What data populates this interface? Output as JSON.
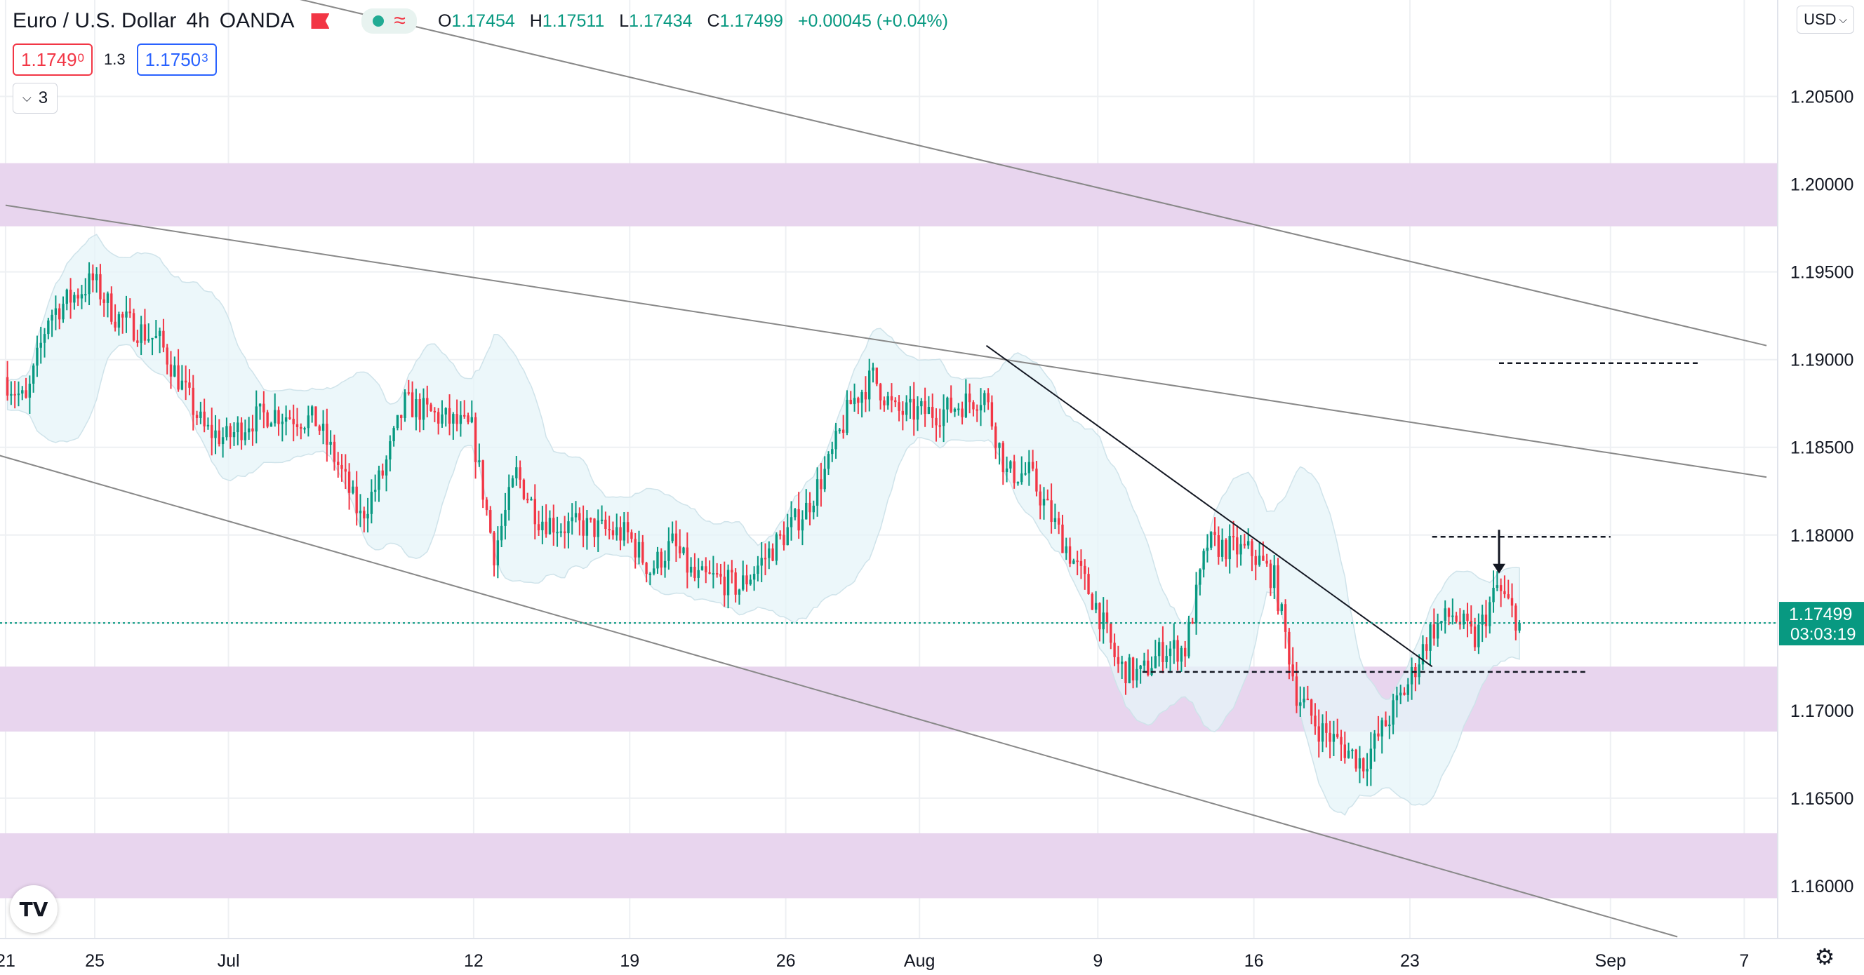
{
  "header": {
    "symbol": "Euro / U.S. Dollar",
    "interval": "4h",
    "broker": "OANDA",
    "ohlc": {
      "o_label": "O",
      "o": "1.17454",
      "h_label": "H",
      "h": "1.17511",
      "l_label": "L",
      "l": "1.17434",
      "c_label": "C",
      "c": "1.17499",
      "change": "+0.00045 (+0.04%)"
    }
  },
  "trade": {
    "bid_main": "1.1749",
    "bid_sup": "0",
    "spread": "1.3",
    "ask_main": "1.1750",
    "ask_sup": "3"
  },
  "legend_button": {
    "count": "3"
  },
  "currency_button": {
    "label": "USD"
  },
  "icons": {
    "flag": "flag-icon",
    "market_open": "market-status-dot-icon",
    "data_wave": "data-wave-icon",
    "chevron": "chevron-down-icon",
    "logo": "tradingview-logo-icon",
    "settings": "gear-icon"
  },
  "logo_text": "TV",
  "colors": {
    "up": "#089981",
    "down": "#f23645",
    "zone": "#e8d5ee",
    "band": "#e6f4f8",
    "last_price": "#089981",
    "trendline": "#888888"
  },
  "chart_data": {
    "type": "candlestick",
    "symbol": "EURUSD",
    "timeframe": "4h",
    "ylim": [
      1.157,
      1.2105
    ],
    "y_ticks": [
      1.16,
      1.165,
      1.17,
      1.175,
      1.18,
      1.185,
      1.19,
      1.195,
      1.2,
      1.205
    ],
    "y_tick_labels": [
      "1.16000",
      "1.16500",
      "1.17000",
      "1.17500",
      "1.18000",
      "1.18500",
      "1.19000",
      "1.19500",
      "1.20000",
      "1.20500"
    ],
    "x_range": [
      "2021-06-20T18:00",
      "2021-09-08T12:00"
    ],
    "x_ticks": [
      {
        "label": "21",
        "date": "2021-06-21"
      },
      {
        "label": "25",
        "date": "2021-06-25"
      },
      {
        "label": "Jul",
        "date": "2021-07-01"
      },
      {
        "label": "12",
        "date": "2021-07-12"
      },
      {
        "label": "19",
        "date": "2021-07-19"
      },
      {
        "label": "26",
        "date": "2021-07-26"
      },
      {
        "label": "Aug",
        "date": "2021-08-01"
      },
      {
        "label": "9",
        "date": "2021-08-09"
      },
      {
        "label": "16",
        "date": "2021-08-16"
      },
      {
        "label": "23",
        "date": "2021-08-23"
      },
      {
        "label": "Sep",
        "date": "2021-09-01"
      },
      {
        "label": "7",
        "date": "2021-09-07"
      }
    ],
    "last_price": {
      "value": 1.17499,
      "label": "1.17499",
      "countdown": "03:03:19"
    },
    "segments": [
      [
        "2021-06-21",
        1.189
      ],
      [
        "2021-06-22",
        1.1875
      ],
      [
        "2021-06-23",
        1.1925
      ],
      [
        "2021-06-24",
        1.1935
      ],
      [
        "2021-06-25",
        1.1945
      ],
      [
        "2021-06-26",
        1.1925
      ],
      [
        "2021-06-28",
        1.191
      ],
      [
        "2021-06-29",
        1.1885
      ],
      [
        "2021-06-30",
        1.186
      ],
      [
        "2021-07-01",
        1.1855
      ],
      [
        "2021-07-02",
        1.1865
      ],
      [
        "2021-07-03",
        1.187
      ],
      [
        "2021-07-05",
        1.1865
      ],
      [
        "2021-07-06",
        1.184
      ],
      [
        "2021-07-07",
        1.181
      ],
      [
        "2021-07-08",
        1.1835
      ],
      [
        "2021-07-09",
        1.1875
      ],
      [
        "2021-07-10",
        1.187
      ],
      [
        "2021-07-12",
        1.186
      ],
      [
        "2021-07-13",
        1.179
      ],
      [
        "2021-07-14",
        1.1835
      ],
      [
        "2021-07-15",
        1.181
      ],
      [
        "2021-07-16",
        1.1805
      ],
      [
        "2021-07-17",
        1.1805
      ],
      [
        "2021-07-19",
        1.18
      ],
      [
        "2021-07-20",
        1.178
      ],
      [
        "2021-07-21",
        1.1795
      ],
      [
        "2021-07-22",
        1.1775
      ],
      [
        "2021-07-23",
        1.1775
      ],
      [
        "2021-07-24",
        1.177
      ],
      [
        "2021-07-26",
        1.18
      ],
      [
        "2021-07-27",
        1.1815
      ],
      [
        "2021-07-28",
        1.184
      ],
      [
        "2021-07-29",
        1.1875
      ],
      [
        "2021-07-30",
        1.189
      ],
      [
        "2021-07-31",
        1.187
      ],
      [
        "2021-08-02",
        1.187
      ],
      [
        "2021-08-03",
        1.1875
      ],
      [
        "2021-08-04",
        1.188
      ],
      [
        "2021-08-05",
        1.1835
      ],
      [
        "2021-08-06",
        1.1835
      ],
      [
        "2021-08-07",
        1.181
      ],
      [
        "2021-08-09",
        1.176
      ],
      [
        "2021-08-10",
        1.1725
      ],
      [
        "2021-08-11",
        1.172
      ],
      [
        "2021-08-12",
        1.1735
      ],
      [
        "2021-08-13",
        1.1735
      ],
      [
        "2021-08-14",
        1.1795
      ],
      [
        "2021-08-16",
        1.179
      ],
      [
        "2021-08-17",
        1.1775
      ],
      [
        "2021-08-18",
        1.171
      ],
      [
        "2021-08-19",
        1.169
      ],
      [
        "2021-08-20",
        1.168
      ],
      [
        "2021-08-21",
        1.167
      ],
      [
        "2021-08-23",
        1.1715
      ],
      [
        "2021-08-24",
        1.1745
      ],
      [
        "2021-08-25",
        1.1755
      ],
      [
        "2021-08-26",
        1.174
      ],
      [
        "2021-08-27",
        1.177
      ],
      [
        "2021-08-28",
        1.17499
      ]
    ],
    "sr_zones": [
      [
        1.1976,
        1.2012
      ],
      [
        1.1688,
        1.1725
      ],
      [
        1.1593,
        1.163
      ]
    ],
    "trendlines": [
      {
        "from": [
          "2021-06-21",
          1.1988
        ],
        "to": [
          "2021-09-08",
          1.1833
        ]
      },
      {
        "from": [
          "2021-06-20",
          1.1848
        ],
        "to": [
          "2021-09-04",
          1.1571
        ]
      },
      {
        "from": [
          "2021-06-30",
          1.2118
        ],
        "to": [
          "2021-09-08",
          1.1908
        ]
      },
      {
        "from": [
          "2021-08-04",
          1.1908
        ],
        "to": [
          "2021-08-24",
          1.1725
        ]
      }
    ],
    "horizontal_levels": [
      {
        "value": 1.1898,
        "from": "2021-08-27",
        "to": "2021-09-05"
      },
      {
        "value": 1.1799,
        "from": "2021-08-24",
        "to": "2021-09-01"
      },
      {
        "value": 1.1722,
        "from": "2021-08-11",
        "to": "2021-08-31"
      }
    ],
    "annotations": [
      {
        "type": "arrow-down",
        "date": "2021-08-27",
        "from": 1.1799,
        "to": 1.1782
      }
    ]
  }
}
